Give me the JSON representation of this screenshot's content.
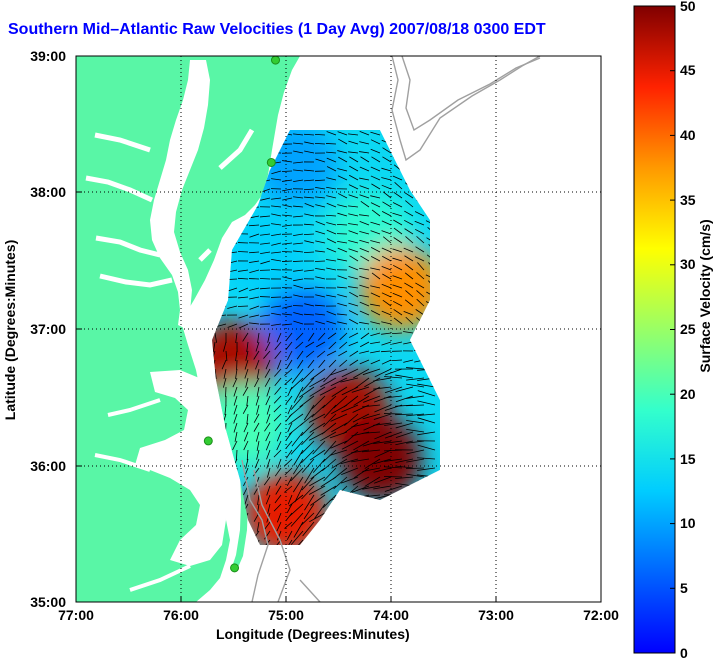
{
  "title": "Southern Mid–Atlantic Raw Velocities (1 Day Avg) 2007/08/18 0300 EDT",
  "axes": {
    "x_label": "Longitude (Degrees:Minutes)",
    "y_label": "Latitude (Degrees:Minutes)",
    "x_ticks": [
      "77:00",
      "76:00",
      "75:00",
      "74:00",
      "73:00",
      "72:00"
    ],
    "y_ticks": [
      "39:00",
      "38:00",
      "37:00",
      "36:00",
      "35:00"
    ],
    "x_range_deg_west": [
      77,
      72
    ],
    "y_range_deg_north": [
      35,
      39
    ],
    "grid": "dotted"
  },
  "colorbar": {
    "label": "Surface Velocity (cm/s)",
    "ticks": [
      "50",
      "45",
      "40",
      "35",
      "30",
      "25",
      "20",
      "15",
      "10",
      "5",
      "0"
    ],
    "range_cm_s": [
      0,
      50
    ],
    "colormap": "jet"
  },
  "colors": {
    "land": "#59f6a6",
    "title": "#0000ff",
    "bathymetry": "#a0a0a0",
    "station": "#33cc33"
  },
  "stations": [
    {
      "lon": -75.1,
      "lat": 38.97
    },
    {
      "lon": -75.14,
      "lat": 38.22
    },
    {
      "lon": -75.74,
      "lat": 36.18
    },
    {
      "lon": -75.49,
      "lat": 35.25
    }
  ],
  "velocity_regions": [
    {
      "lon": -74.9,
      "lat": 38.2,
      "speed_cm_s": 10
    },
    {
      "lon": -75.2,
      "lat": 37.55,
      "speed_cm_s": 13
    },
    {
      "lon": -74.2,
      "lat": 37.7,
      "speed_cm_s": 18
    },
    {
      "lon": -73.9,
      "lat": 37.3,
      "speed_cm_s": 38
    },
    {
      "lon": -74.85,
      "lat": 37.0,
      "speed_cm_s": 6
    },
    {
      "lon": -75.5,
      "lat": 36.75,
      "speed_cm_s": 48
    },
    {
      "lon": -75.4,
      "lat": 36.3,
      "speed_cm_s": 20
    },
    {
      "lon": -74.4,
      "lat": 36.4,
      "speed_cm_s": 48
    },
    {
      "lon": -74.1,
      "lat": 36.05,
      "speed_cm_s": 50
    },
    {
      "lon": -75.0,
      "lat": 35.65,
      "speed_cm_s": 45
    }
  ]
}
